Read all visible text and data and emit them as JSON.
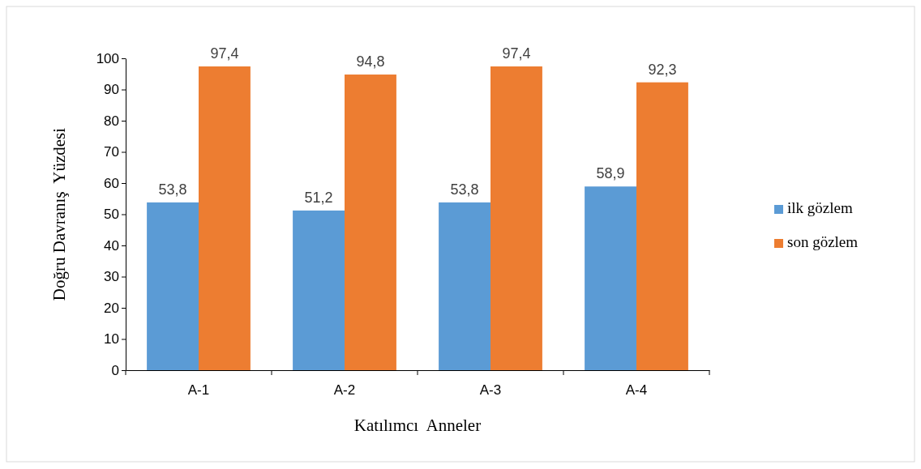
{
  "chart_data": {
    "type": "bar",
    "xlabel": "Katılımcı  Anneler",
    "ylabel": "Doğru Davranış  Yüzdesi",
    "categories": [
      "A-1",
      "A-2",
      "A-3",
      "A-4"
    ],
    "series": [
      {
        "name": "ilk gözlem",
        "color": "#5b9bd5",
        "values": [
          53.8,
          51.2,
          53.8,
          58.9
        ],
        "value_labels": [
          "53,8",
          "51,2",
          "53,8",
          "58,9"
        ]
      },
      {
        "name": "son gözlem",
        "color": "#ed7d31",
        "values": [
          97.4,
          94.8,
          97.4,
          92.3
        ],
        "value_labels": [
          "97,4",
          "94,8",
          "97,4",
          "92,3"
        ]
      }
    ],
    "ylim": [
      0,
      100
    ],
    "yticks": [
      0,
      10,
      20,
      30,
      40,
      50,
      60,
      70,
      80,
      90,
      100
    ],
    "grid": false,
    "legend": "right"
  }
}
